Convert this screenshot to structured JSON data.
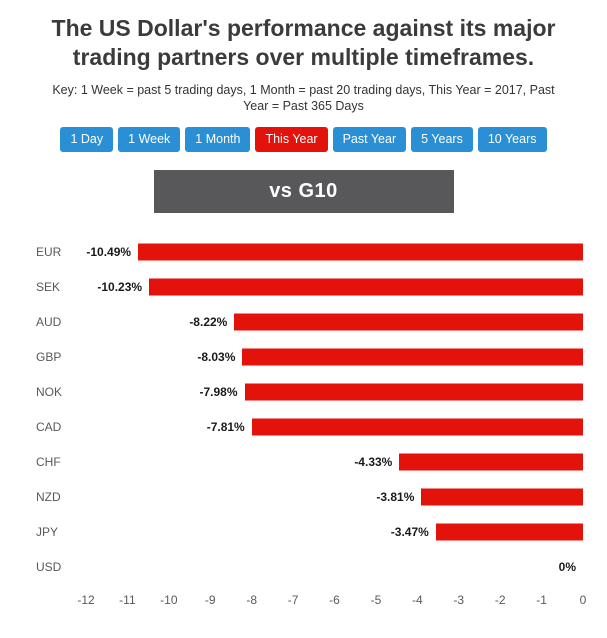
{
  "header": {
    "title": "The US Dollar's performance against its major trading partners over multiple timeframes.",
    "key_text": "Key: 1 Week = past 5 trading days, 1 Month = past 20 trading days, This Year = 2017, Past Year = Past 365 Days"
  },
  "timeframe_buttons": [
    {
      "label": "1 Day",
      "active": false
    },
    {
      "label": "1 Week",
      "active": false
    },
    {
      "label": "1 Month",
      "active": false
    },
    {
      "label": "This Year",
      "active": true
    },
    {
      "label": "Past Year",
      "active": false
    },
    {
      "label": "5 Years",
      "active": false
    },
    {
      "label": "10 Years",
      "active": false
    }
  ],
  "group_header": "vs G10",
  "colors": {
    "button_blue": "#2b8fd6",
    "button_active_red": "#e3120b",
    "group_header_bg": "#58585a",
    "bar_red": "#e3120b",
    "title_color": "#3b3b3b"
  },
  "chart_data": {
    "type": "bar",
    "orientation": "horizontal",
    "title": "vs G10",
    "categories": [
      "EUR",
      "SEK",
      "AUD",
      "GBP",
      "NOK",
      "CAD",
      "CHF",
      "NZD",
      "JPY",
      "USD"
    ],
    "values": [
      -10.49,
      -10.23,
      -8.22,
      -8.03,
      -7.98,
      -7.81,
      -4.33,
      -3.81,
      -3.47,
      0
    ],
    "value_labels": [
      "-10.49%",
      "-10.23%",
      "-8.22%",
      "-8.03%",
      "-7.98%",
      "-7.81%",
      "-4.33%",
      "-3.81%",
      "-3.47%",
      "0%"
    ],
    "xlim": [
      -12,
      0
    ],
    "x_ticks": [
      -12,
      -11,
      -10,
      -9,
      -8,
      -7,
      -6,
      -5,
      -4,
      -3,
      -2,
      -1,
      0
    ],
    "bar_color": "#e3120b",
    "grid": false,
    "legend": false
  }
}
